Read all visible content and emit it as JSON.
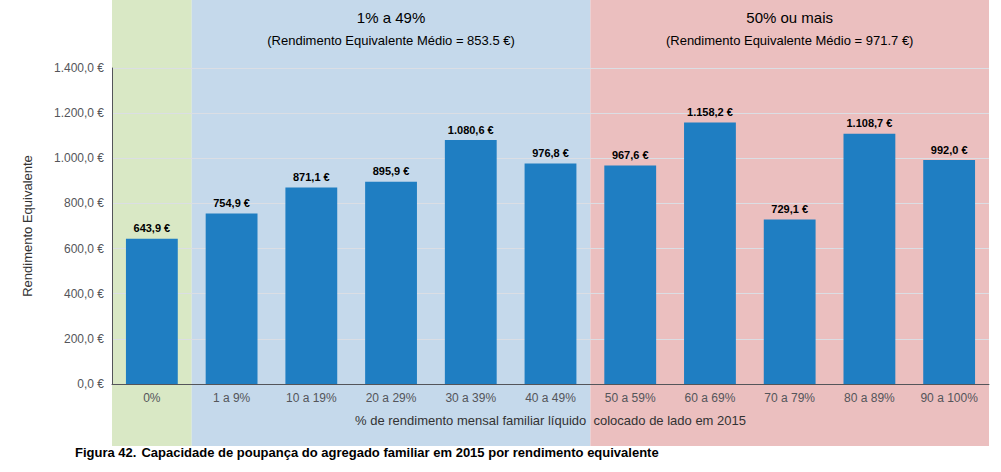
{
  "chart_data": {
    "type": "bar",
    "categories": [
      "0%",
      "1 a 9%",
      "10 a 19%",
      "20 a 29%",
      "30 a 39%",
      "40 a 49%",
      "50 a 59%",
      "60 a 69%",
      "70 a 79%",
      "80 a 89%",
      "90 a 100%"
    ],
    "values": [
      643.9,
      754.9,
      871.1,
      895.9,
      1080.6,
      976.8,
      967.6,
      1158.2,
      729.1,
      1108.7,
      992.0
    ],
    "value_labels": [
      "643,9 €",
      "754,9 €",
      "871,1 €",
      "895,9 €",
      "1.080,6 €",
      "976,8 €",
      "967,6 €",
      "1.158,2 €",
      "729,1 €",
      "1.108,7 €",
      "992,0 €"
    ],
    "data_labels": true,
    "color": "#1F7EC2",
    "xlabel": "% de rendimento mensal familiar líquido  colocado de lado em 2015",
    "ylabel": "Rendimento Equivalente",
    "ylim": [
      0,
      1400
    ],
    "yticks": [
      {
        "value": 0,
        "label": "0,0 €"
      },
      {
        "value": 200,
        "label": "200,0 €"
      },
      {
        "value": 400,
        "label": "400,0 €"
      },
      {
        "value": 600,
        "label": "600,0 €"
      },
      {
        "value": 800,
        "label": "800,0 €"
      },
      {
        "value": 1000,
        "label": "1.000,0 €"
      },
      {
        "value": 1200,
        "label": "1.200,0 €"
      },
      {
        "value": 1400,
        "label": "1.400,0 €"
      }
    ],
    "grid": true,
    "groups": [
      {
        "color": "#D9E8C5",
        "categories": [
          "0%"
        ]
      },
      {
        "color": "#C5D9EB",
        "label": "1% a 49%",
        "sublabel": "(Rendimento Equivalente Médio = 853.5 €)",
        "categories": [
          "1 a 9%",
          "10 a 19%",
          "20 a 29%",
          "30 a 39%",
          "40 a 49%"
        ]
      },
      {
        "color": "#EBBFBF",
        "label": "50% ou mais",
        "sublabel": "(Rendimento Equivalente Médio = 971.7 €)",
        "categories": [
          "50 a 59%",
          "60 a 69%",
          "70 a 79%",
          "80 a 89%",
          "90 a 100%"
        ]
      }
    ],
    "caption": {
      "bold": "Figura 42.",
      "text": "Capacidade de poupança do agregado familiar em 2015 por rendimento equivalente"
    }
  }
}
